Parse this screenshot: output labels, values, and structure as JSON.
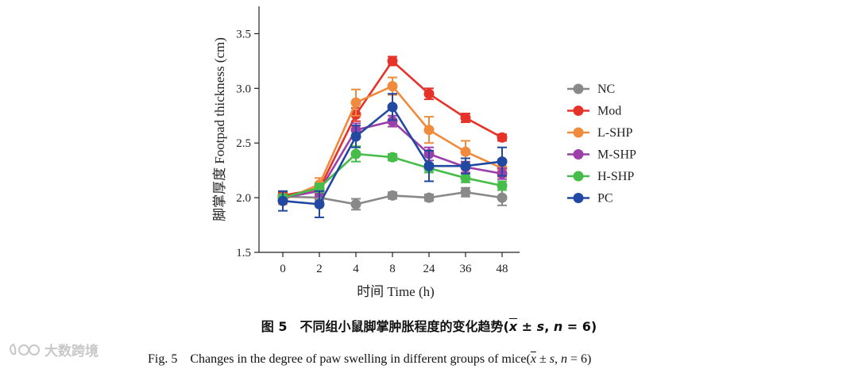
{
  "chart_data": {
    "type": "line",
    "xlabel": "时间 Time (h)",
    "ylabel": "脚掌厚度 Footpad thickness (cm)",
    "categories": [
      "0",
      "2",
      "4",
      "8",
      "24",
      "36",
      "48"
    ],
    "ylim": [
      1.5,
      3.75
    ],
    "yticks": [
      "1.5",
      "2.0",
      "2.5",
      "3.0",
      "3.5"
    ],
    "legend_position": "right",
    "series": [
      {
        "name": "NC",
        "color": "#898989",
        "values": [
          2.01,
          2.0,
          1.94,
          2.02,
          2.0,
          2.05,
          2.0
        ],
        "errors": [
          0.03,
          0.03,
          0.05,
          0.03,
          0.03,
          0.04,
          0.07
        ]
      },
      {
        "name": "Mod",
        "color": "#e5332a",
        "values": [
          2.02,
          2.08,
          2.76,
          3.25,
          2.95,
          2.73,
          2.55
        ],
        "errors": [
          0.03,
          0.05,
          0.06,
          0.04,
          0.05,
          0.04,
          0.03
        ]
      },
      {
        "name": "L-SHP",
        "color": "#f08a3c",
        "values": [
          1.98,
          2.12,
          2.87,
          3.02,
          2.62,
          2.42,
          2.27
        ],
        "errors": [
          0.04,
          0.06,
          0.12,
          0.08,
          0.12,
          0.1,
          0.08
        ]
      },
      {
        "name": "M-SHP",
        "color": "#9c3fa8",
        "values": [
          2.0,
          2.06,
          2.62,
          2.7,
          2.4,
          2.28,
          2.22
        ],
        "errors": [
          0.03,
          0.05,
          0.06,
          0.05,
          0.06,
          0.05,
          0.05
        ]
      },
      {
        "name": "H-SHP",
        "color": "#46bc4a",
        "values": [
          2.0,
          2.09,
          2.4,
          2.37,
          2.27,
          2.18,
          2.11
        ],
        "errors": [
          0.03,
          0.04,
          0.07,
          0.03,
          0.04,
          0.04,
          0.04
        ]
      },
      {
        "name": "PC",
        "color": "#2149a1",
        "values": [
          1.97,
          1.94,
          2.56,
          2.83,
          2.29,
          2.29,
          2.33
        ],
        "errors": [
          0.09,
          0.12,
          0.1,
          0.12,
          0.14,
          0.07,
          0.13
        ]
      }
    ]
  },
  "caption": {
    "cn_prefix": "图 5　不同组小鼠脚掌肿胀程度的变化趋势(",
    "en_prefix": "Fig. 5　Changes in the degree of paw swelling in different groups of mice(",
    "xbar": "x",
    "stat_mid": " ± ",
    "s": "s",
    "comma": ", ",
    "n": "n",
    "n_value": " = 6)"
  },
  "watermark": {
    "text": "大数跨境"
  }
}
